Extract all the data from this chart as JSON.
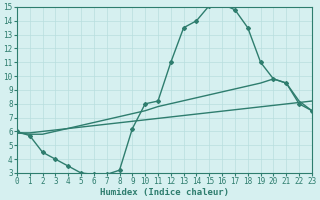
{
  "line1_x": [
    0,
    1,
    2,
    3,
    4,
    5,
    6,
    7,
    8,
    9,
    10,
    11,
    12,
    13,
    14,
    15,
    16,
    17,
    18,
    19,
    20,
    21,
    22,
    23
  ],
  "line1_y": [
    6.0,
    5.7,
    4.5,
    4.0,
    3.5,
    3.0,
    2.9,
    2.9,
    3.2,
    6.2,
    8.0,
    8.2,
    11.0,
    13.5,
    14.0,
    15.1,
    15.2,
    14.8,
    13.5,
    11.0,
    9.8,
    9.5,
    8.0,
    7.5
  ],
  "line2_x": [
    0,
    1,
    2,
    10,
    11,
    19,
    20,
    21,
    22,
    23
  ],
  "line2_y": [
    5.9,
    5.8,
    5.8,
    7.5,
    7.8,
    9.5,
    9.8,
    9.5,
    8.2,
    7.5
  ],
  "line3_x": [
    0,
    1,
    23
  ],
  "line3_y": [
    5.9,
    5.9,
    8.2
  ],
  "line_color": "#2e7d6e",
  "bg_color": "#d6f0f0",
  "grid_color": "#b8dede",
  "xlabel": "Humidex (Indice chaleur)",
  "ylim": [
    3,
    15
  ],
  "xlim": [
    0,
    23
  ],
  "yticks": [
    3,
    4,
    5,
    6,
    7,
    8,
    9,
    10,
    11,
    12,
    13,
    14,
    15
  ],
  "xticks": [
    0,
    1,
    2,
    3,
    4,
    5,
    6,
    7,
    8,
    9,
    10,
    11,
    12,
    13,
    14,
    15,
    16,
    17,
    18,
    19,
    20,
    21,
    22,
    23
  ],
  "tick_fontsize": 5.5,
  "xlabel_fontsize": 6.5,
  "marker": "D",
  "marker_size": 2.0,
  "linewidth": 1.0
}
